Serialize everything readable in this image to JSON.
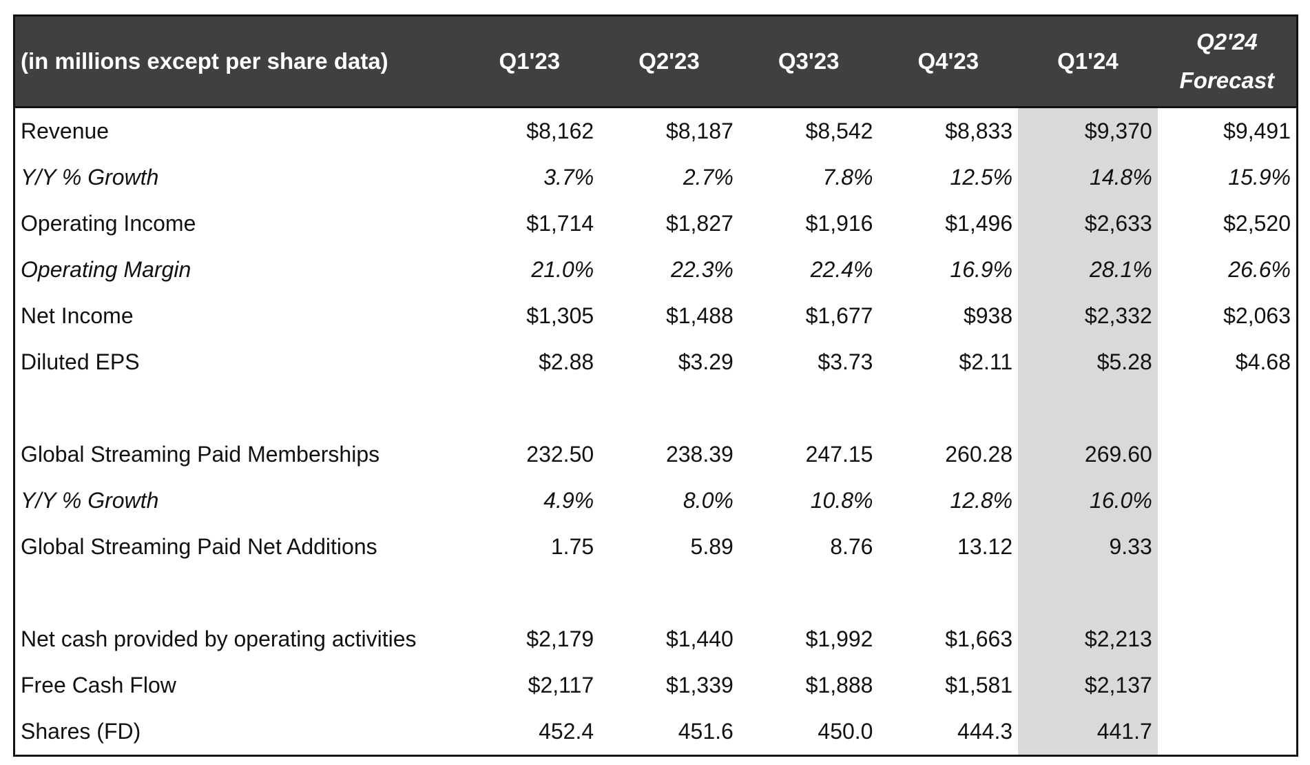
{
  "table": {
    "columns": [
      "(in millions except per share data)",
      "Q1'23",
      "Q2'23",
      "Q3'23",
      "Q4'23",
      "Q1'24",
      "Q2'24 Forecast"
    ],
    "sections": [
      {
        "rows": [
          {
            "label": "Revenue",
            "values": [
              "$8,162",
              "$8,187",
              "$8,542",
              "$8,833",
              "$9,370",
              "$9,491"
            ]
          },
          {
            "label": "Y/Y % Growth",
            "italic": true,
            "values": [
              "3.7%",
              "2.7%",
              "7.8%",
              "12.5%",
              "14.8%",
              "15.9%"
            ]
          },
          {
            "label": "Operating Income",
            "values": [
              "$1,714",
              "$1,827",
              "$1,916",
              "$1,496",
              "$2,633",
              "$2,520"
            ]
          },
          {
            "label": "Operating Margin",
            "italic": true,
            "values": [
              "21.0%",
              "22.3%",
              "22.4%",
              "16.9%",
              "28.1%",
              "26.6%"
            ]
          },
          {
            "label": "Net Income",
            "values": [
              "$1,305",
              "$1,488",
              "$1,677",
              "$938",
              "$2,332",
              "$2,063"
            ]
          },
          {
            "label": "Diluted EPS",
            "values": [
              "$2.88",
              "$3.29",
              "$3.73",
              "$2.11",
              "$5.28",
              "$4.68"
            ]
          }
        ]
      },
      {
        "rows": [
          {
            "label": "Global Streaming Paid Memberships",
            "values": [
              "232.50",
              "238.39",
              "247.15",
              "260.28",
              "269.60"
            ]
          },
          {
            "label": "Y/Y % Growth",
            "italic": true,
            "values": [
              "4.9%",
              "8.0%",
              "10.8%",
              "12.8%",
              "16.0%"
            ]
          },
          {
            "label": "Global Streaming Paid Net Additions",
            "values": [
              "1.75",
              "5.89",
              "8.76",
              "13.12",
              "9.33"
            ]
          }
        ]
      },
      {
        "rows": [
          {
            "label": "Net cash provided by operating activities",
            "values": [
              "$2,179",
              "$1,440",
              "$1,992",
              "$1,663",
              "$2,213"
            ]
          },
          {
            "label": "Free Cash Flow",
            "values": [
              "$2,117",
              "$1,339",
              "$1,888",
              "$1,581",
              "$2,137"
            ]
          },
          {
            "label": "Shares (FD)",
            "values": [
              "452.4",
              "451.6",
              "450.0",
              "444.3",
              "441.7"
            ]
          }
        ]
      }
    ]
  }
}
